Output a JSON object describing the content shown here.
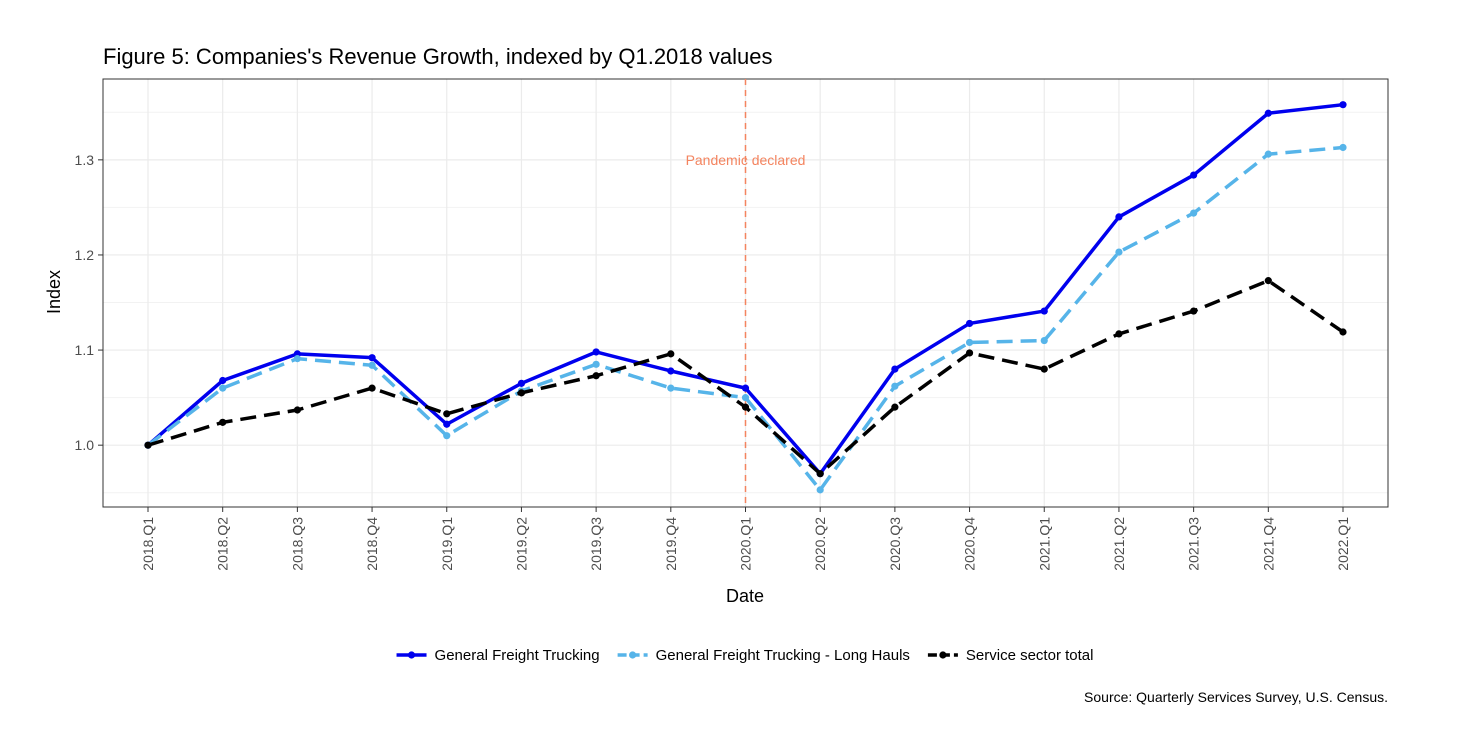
{
  "chart_data": {
    "type": "line",
    "title": "Figure 5: Companies's Revenue Growth, indexed by Q1.2018 values",
    "xlabel": "Date",
    "ylabel": "Index",
    "caption": "Source: Quarterly Services Survey, U.S. Census.",
    "categories": [
      "2018.Q1",
      "2018.Q2",
      "2018.Q3",
      "2018.Q4",
      "2019.Q1",
      "2019.Q2",
      "2019.Q3",
      "2019.Q4",
      "2020.Q1",
      "2020.Q2",
      "2020.Q3",
      "2020.Q4",
      "2021.Q1",
      "2021.Q2",
      "2021.Q3",
      "2021.Q4",
      "2022.Q1"
    ],
    "ylim": [
      0.935,
      1.385
    ],
    "yticks": [
      1.0,
      1.1,
      1.2,
      1.3
    ],
    "ytick_labels": [
      "1.0",
      "1.1",
      "1.2",
      "1.3"
    ],
    "grid": true,
    "legend_position": "bottom",
    "annotation": {
      "text": "Pandemic declared",
      "x": "2020.Q1",
      "y": 1.3,
      "color": "#F4845F",
      "line_style": "dashed"
    },
    "series": [
      {
        "name": "General Freight Trucking",
        "color": "#0000EE",
        "dash": "solid",
        "values": [
          1.0,
          1.068,
          1.096,
          1.092,
          1.022,
          1.065,
          1.098,
          1.078,
          1.06,
          0.97,
          1.08,
          1.128,
          1.141,
          1.24,
          1.284,
          1.349,
          1.358
        ]
      },
      {
        "name": "General Freight Trucking - Long Hauls",
        "color": "#56B4E9",
        "dash": "dashed",
        "values": [
          1.0,
          1.06,
          1.091,
          1.084,
          1.01,
          1.057,
          1.085,
          1.06,
          1.05,
          0.953,
          1.062,
          1.108,
          1.11,
          1.203,
          1.244,
          1.306,
          1.313
        ]
      },
      {
        "name": "Service sector total",
        "color": "#000000",
        "dash": "dashed",
        "values": [
          1.0,
          1.024,
          1.037,
          1.06,
          1.033,
          1.055,
          1.073,
          1.096,
          1.04,
          0.97,
          1.04,
          1.097,
          1.08,
          1.117,
          1.141,
          1.173,
          1.119
        ]
      }
    ]
  }
}
